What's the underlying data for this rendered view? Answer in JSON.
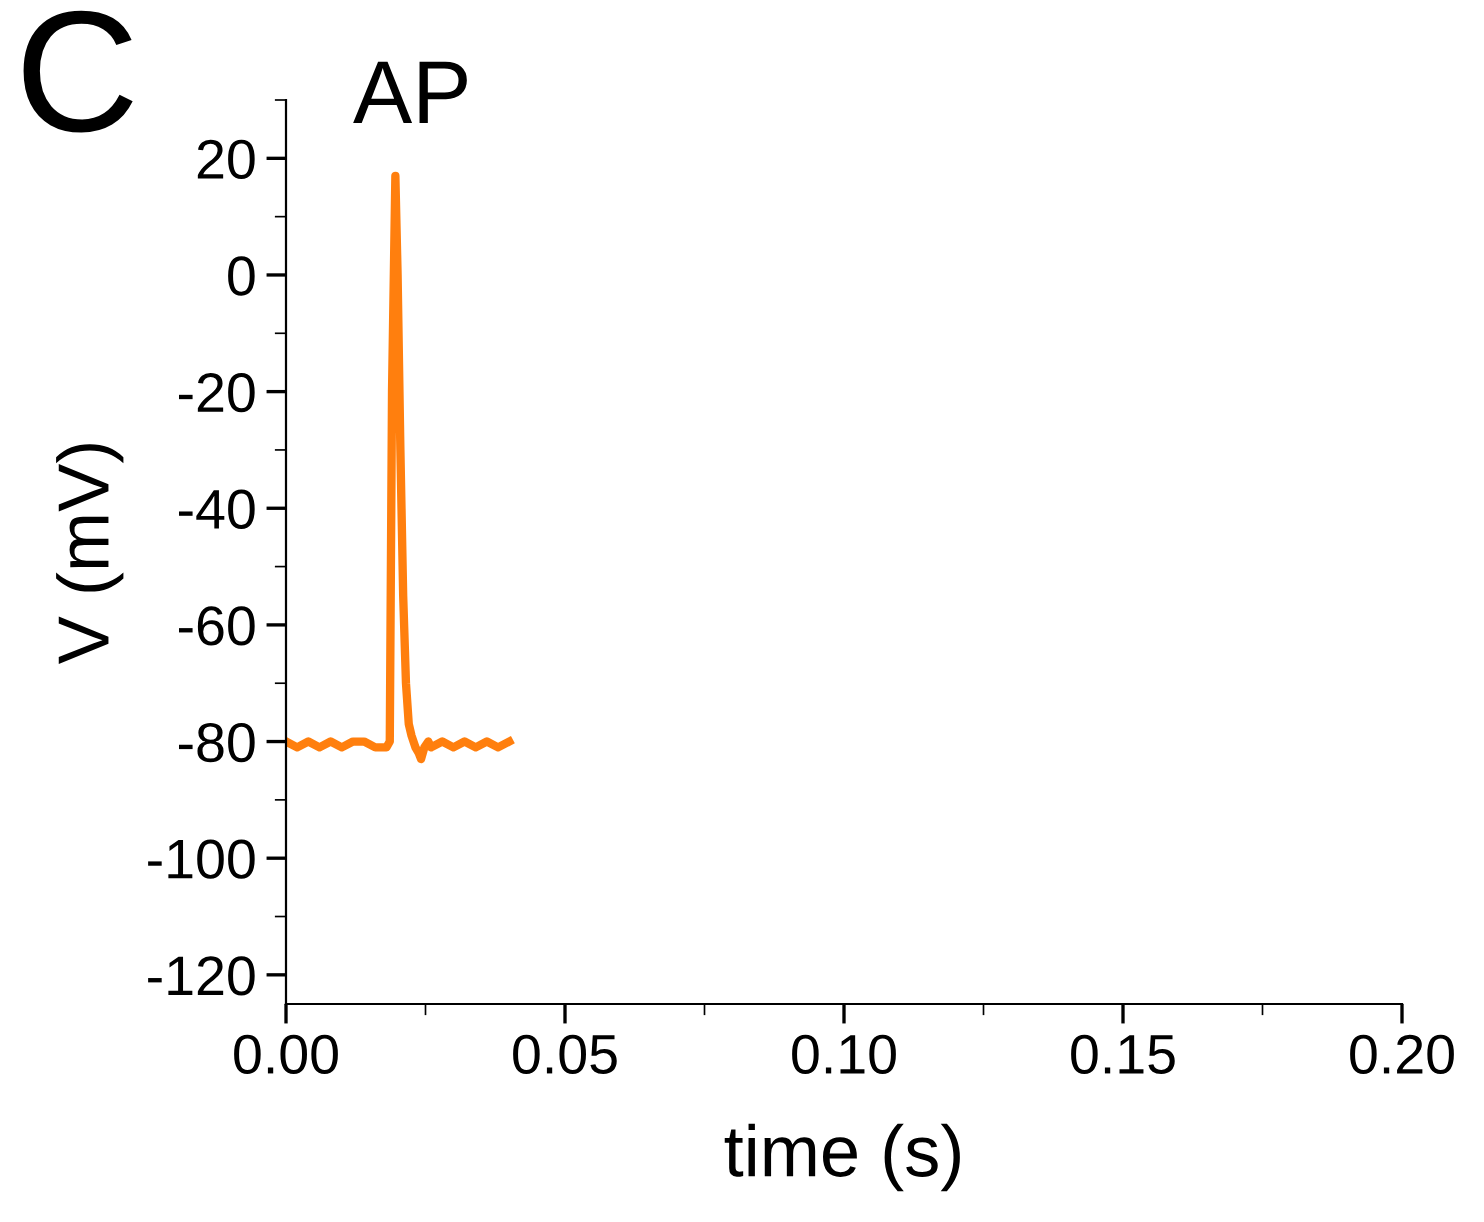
{
  "chart_data": {
    "type": "line",
    "title": "AP",
    "xlabel": "time (s)",
    "ylabel": "V (mV)",
    "annotations": [
      "C"
    ],
    "x": [
      0,
      0.002,
      0.004,
      0.006,
      0.008,
      0.01,
      0.012,
      0.014,
      0.016,
      0.018,
      0.0186,
      0.019,
      0.0196,
      0.02,
      0.0205,
      0.021,
      0.0215,
      0.022,
      0.0225,
      0.0232,
      0.0238,
      0.0242,
      0.0248,
      0.0255,
      0.026,
      0.028,
      0.03,
      0.032,
      0.034,
      0.036,
      0.038,
      0.04
    ],
    "series": [
      {
        "color": "#ff7f0e",
        "values": [
          -80,
          -81,
          -80,
          -81,
          -80,
          -81,
          -80,
          -80,
          -81,
          -81,
          -80,
          -20,
          17,
          0,
          -30,
          -55,
          -70,
          -77,
          -79,
          -81,
          -82,
          -83,
          -81,
          -80,
          -81,
          -80,
          -81,
          -80,
          -81,
          -80,
          -81,
          -80
        ]
      }
    ],
    "xlim": [
      0,
      0.2
    ],
    "ylim": [
      -125,
      30
    ],
    "xticks": [
      {
        "value": 0,
        "label": "0.00"
      },
      {
        "value": 0.05,
        "label": "0.05"
      },
      {
        "value": 0.1,
        "label": "0.10"
      },
      {
        "value": 0.15,
        "label": "0.15"
      },
      {
        "value": 0.2,
        "label": "0.20"
      }
    ],
    "yticks": [
      -120,
      -100,
      -80,
      -60,
      -40,
      -20,
      0,
      20
    ],
    "grid": false,
    "legend": false,
    "marker": "none",
    "line_style": "solid"
  }
}
